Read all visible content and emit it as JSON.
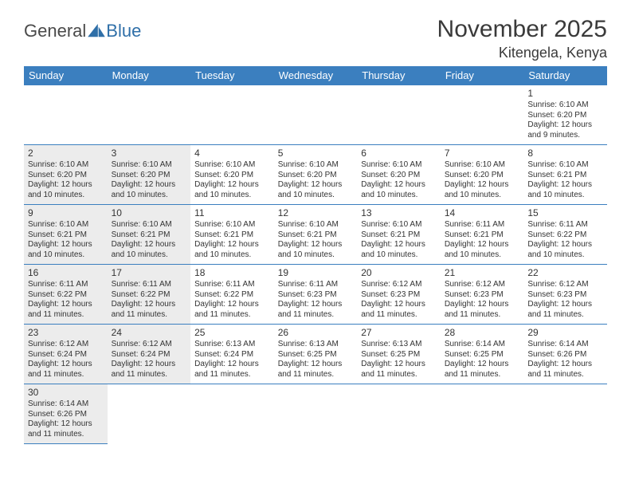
{
  "logo": {
    "textA": "General",
    "textB": "Blue"
  },
  "title": "November 2025",
  "location": "Kitengela, Kenya",
  "colors": {
    "header_bg": "#3b7fbf",
    "header_text": "#ffffff",
    "shaded_bg": "#ececec",
    "border": "#3b7fbf",
    "page_bg": "#ffffff",
    "text": "#333333"
  },
  "weekdays": [
    "Sunday",
    "Monday",
    "Tuesday",
    "Wednesday",
    "Thursday",
    "Friday",
    "Saturday"
  ],
  "weeks": [
    [
      null,
      null,
      null,
      null,
      null,
      null,
      {
        "n": "1",
        "sr": "Sunrise: 6:10 AM",
        "ss": "Sunset: 6:20 PM",
        "d1": "Daylight: 12 hours",
        "d2": "and 9 minutes.",
        "shaded": false
      }
    ],
    [
      {
        "n": "2",
        "sr": "Sunrise: 6:10 AM",
        "ss": "Sunset: 6:20 PM",
        "d1": "Daylight: 12 hours",
        "d2": "and 10 minutes.",
        "shaded": true
      },
      {
        "n": "3",
        "sr": "Sunrise: 6:10 AM",
        "ss": "Sunset: 6:20 PM",
        "d1": "Daylight: 12 hours",
        "d2": "and 10 minutes.",
        "shaded": true
      },
      {
        "n": "4",
        "sr": "Sunrise: 6:10 AM",
        "ss": "Sunset: 6:20 PM",
        "d1": "Daylight: 12 hours",
        "d2": "and 10 minutes.",
        "shaded": false
      },
      {
        "n": "5",
        "sr": "Sunrise: 6:10 AM",
        "ss": "Sunset: 6:20 PM",
        "d1": "Daylight: 12 hours",
        "d2": "and 10 minutes.",
        "shaded": false
      },
      {
        "n": "6",
        "sr": "Sunrise: 6:10 AM",
        "ss": "Sunset: 6:20 PM",
        "d1": "Daylight: 12 hours",
        "d2": "and 10 minutes.",
        "shaded": false
      },
      {
        "n": "7",
        "sr": "Sunrise: 6:10 AM",
        "ss": "Sunset: 6:20 PM",
        "d1": "Daylight: 12 hours",
        "d2": "and 10 minutes.",
        "shaded": false
      },
      {
        "n": "8",
        "sr": "Sunrise: 6:10 AM",
        "ss": "Sunset: 6:21 PM",
        "d1": "Daylight: 12 hours",
        "d2": "and 10 minutes.",
        "shaded": false
      }
    ],
    [
      {
        "n": "9",
        "sr": "Sunrise: 6:10 AM",
        "ss": "Sunset: 6:21 PM",
        "d1": "Daylight: 12 hours",
        "d2": "and 10 minutes.",
        "shaded": true
      },
      {
        "n": "10",
        "sr": "Sunrise: 6:10 AM",
        "ss": "Sunset: 6:21 PM",
        "d1": "Daylight: 12 hours",
        "d2": "and 10 minutes.",
        "shaded": true
      },
      {
        "n": "11",
        "sr": "Sunrise: 6:10 AM",
        "ss": "Sunset: 6:21 PM",
        "d1": "Daylight: 12 hours",
        "d2": "and 10 minutes.",
        "shaded": false
      },
      {
        "n": "12",
        "sr": "Sunrise: 6:10 AM",
        "ss": "Sunset: 6:21 PM",
        "d1": "Daylight: 12 hours",
        "d2": "and 10 minutes.",
        "shaded": false
      },
      {
        "n": "13",
        "sr": "Sunrise: 6:10 AM",
        "ss": "Sunset: 6:21 PM",
        "d1": "Daylight: 12 hours",
        "d2": "and 10 minutes.",
        "shaded": false
      },
      {
        "n": "14",
        "sr": "Sunrise: 6:11 AM",
        "ss": "Sunset: 6:21 PM",
        "d1": "Daylight: 12 hours",
        "d2": "and 10 minutes.",
        "shaded": false
      },
      {
        "n": "15",
        "sr": "Sunrise: 6:11 AM",
        "ss": "Sunset: 6:22 PM",
        "d1": "Daylight: 12 hours",
        "d2": "and 10 minutes.",
        "shaded": false
      }
    ],
    [
      {
        "n": "16",
        "sr": "Sunrise: 6:11 AM",
        "ss": "Sunset: 6:22 PM",
        "d1": "Daylight: 12 hours",
        "d2": "and 11 minutes.",
        "shaded": true
      },
      {
        "n": "17",
        "sr": "Sunrise: 6:11 AM",
        "ss": "Sunset: 6:22 PM",
        "d1": "Daylight: 12 hours",
        "d2": "and 11 minutes.",
        "shaded": true
      },
      {
        "n": "18",
        "sr": "Sunrise: 6:11 AM",
        "ss": "Sunset: 6:22 PM",
        "d1": "Daylight: 12 hours",
        "d2": "and 11 minutes.",
        "shaded": false
      },
      {
        "n": "19",
        "sr": "Sunrise: 6:11 AM",
        "ss": "Sunset: 6:23 PM",
        "d1": "Daylight: 12 hours",
        "d2": "and 11 minutes.",
        "shaded": false
      },
      {
        "n": "20",
        "sr": "Sunrise: 6:12 AM",
        "ss": "Sunset: 6:23 PM",
        "d1": "Daylight: 12 hours",
        "d2": "and 11 minutes.",
        "shaded": false
      },
      {
        "n": "21",
        "sr": "Sunrise: 6:12 AM",
        "ss": "Sunset: 6:23 PM",
        "d1": "Daylight: 12 hours",
        "d2": "and 11 minutes.",
        "shaded": false
      },
      {
        "n": "22",
        "sr": "Sunrise: 6:12 AM",
        "ss": "Sunset: 6:23 PM",
        "d1": "Daylight: 12 hours",
        "d2": "and 11 minutes.",
        "shaded": false
      }
    ],
    [
      {
        "n": "23",
        "sr": "Sunrise: 6:12 AM",
        "ss": "Sunset: 6:24 PM",
        "d1": "Daylight: 12 hours",
        "d2": "and 11 minutes.",
        "shaded": true
      },
      {
        "n": "24",
        "sr": "Sunrise: 6:12 AM",
        "ss": "Sunset: 6:24 PM",
        "d1": "Daylight: 12 hours",
        "d2": "and 11 minutes.",
        "shaded": true
      },
      {
        "n": "25",
        "sr": "Sunrise: 6:13 AM",
        "ss": "Sunset: 6:24 PM",
        "d1": "Daylight: 12 hours",
        "d2": "and 11 minutes.",
        "shaded": false
      },
      {
        "n": "26",
        "sr": "Sunrise: 6:13 AM",
        "ss": "Sunset: 6:25 PM",
        "d1": "Daylight: 12 hours",
        "d2": "and 11 minutes.",
        "shaded": false
      },
      {
        "n": "27",
        "sr": "Sunrise: 6:13 AM",
        "ss": "Sunset: 6:25 PM",
        "d1": "Daylight: 12 hours",
        "d2": "and 11 minutes.",
        "shaded": false
      },
      {
        "n": "28",
        "sr": "Sunrise: 6:14 AM",
        "ss": "Sunset: 6:25 PM",
        "d1": "Daylight: 12 hours",
        "d2": "and 11 minutes.",
        "shaded": false
      },
      {
        "n": "29",
        "sr": "Sunrise: 6:14 AM",
        "ss": "Sunset: 6:26 PM",
        "d1": "Daylight: 12 hours",
        "d2": "and 11 minutes.",
        "shaded": false
      }
    ],
    [
      {
        "n": "30",
        "sr": "Sunrise: 6:14 AM",
        "ss": "Sunset: 6:26 PM",
        "d1": "Daylight: 12 hours",
        "d2": "and 11 minutes.",
        "shaded": true
      },
      null,
      null,
      null,
      null,
      null,
      null
    ]
  ]
}
